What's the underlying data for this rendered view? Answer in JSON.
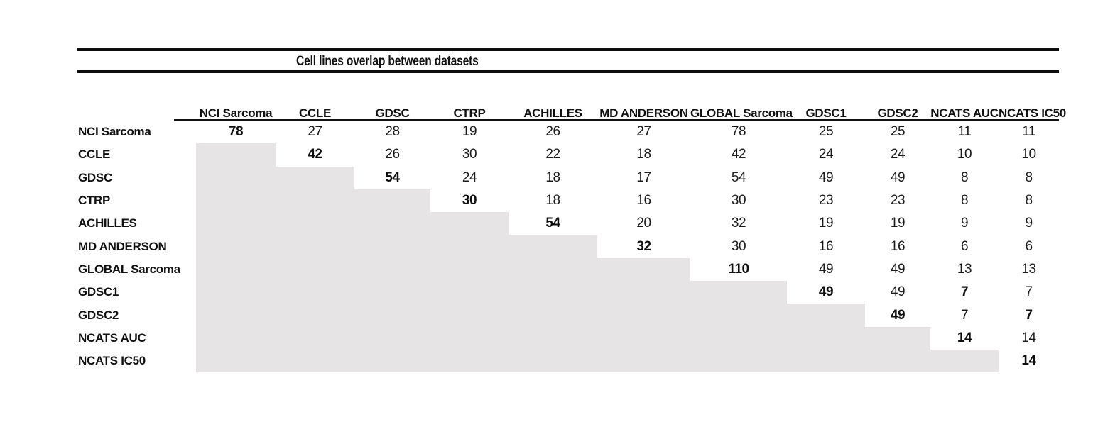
{
  "colors": {
    "shaded_cell": "#e6e4e5",
    "rule": "#0d0d0d",
    "text": "#1a1a1a",
    "background": "#ffffff"
  },
  "chart_data": {
    "type": "table",
    "title": "Cell lines overlap between datasets",
    "row_labels": [
      "NCI Sarcoma",
      "CCLE",
      "GDSC",
      "CTRP",
      "ACHILLES",
      "MD ANDERSON",
      "GLOBAL Sarcoma",
      "GDSC1",
      "GDSC2",
      "NCATS AUC",
      "NCATS IC50"
    ],
    "col_labels": [
      "NCI Sarcoma",
      "CCLE",
      "GDSC",
      "CTRP",
      "ACHILLES",
      "MD ANDERSON",
      "GLOBAL Sarcoma",
      "GDSC1",
      "GDSC2",
      "NCATS AUC",
      "NCATS IC50"
    ],
    "matrix": [
      [
        78,
        27,
        28,
        19,
        26,
        27,
        78,
        25,
        25,
        11,
        11
      ],
      [
        null,
        42,
        26,
        30,
        22,
        18,
        42,
        24,
        24,
        10,
        10
      ],
      [
        null,
        null,
        54,
        24,
        18,
        17,
        54,
        49,
        49,
        8,
        8
      ],
      [
        null,
        null,
        null,
        30,
        18,
        16,
        30,
        23,
        23,
        8,
        8
      ],
      [
        null,
        null,
        null,
        null,
        54,
        20,
        32,
        19,
        19,
        9,
        9
      ],
      [
        null,
        null,
        null,
        null,
        null,
        32,
        30,
        16,
        16,
        6,
        6
      ],
      [
        null,
        null,
        null,
        null,
        null,
        null,
        110,
        49,
        49,
        13,
        13
      ],
      [
        null,
        null,
        null,
        null,
        null,
        null,
        null,
        49,
        49,
        7,
        7
      ],
      [
        null,
        null,
        null,
        null,
        null,
        null,
        null,
        null,
        49,
        7,
        7
      ],
      [
        null,
        null,
        null,
        null,
        null,
        null,
        null,
        null,
        null,
        14,
        14
      ],
      [
        null,
        null,
        null,
        null,
        null,
        null,
        null,
        null,
        null,
        null,
        14
      ]
    ],
    "bold_cells": [
      [
        0,
        0
      ],
      [
        1,
        1
      ],
      [
        2,
        2
      ],
      [
        3,
        3
      ],
      [
        4,
        4
      ],
      [
        5,
        5
      ],
      [
        6,
        6
      ],
      [
        7,
        7
      ],
      [
        8,
        8
      ],
      [
        9,
        9
      ],
      [
        10,
        10
      ],
      [
        7,
        9
      ],
      [
        8,
        10
      ]
    ],
    "legend_position": "none",
    "grid": false
  }
}
